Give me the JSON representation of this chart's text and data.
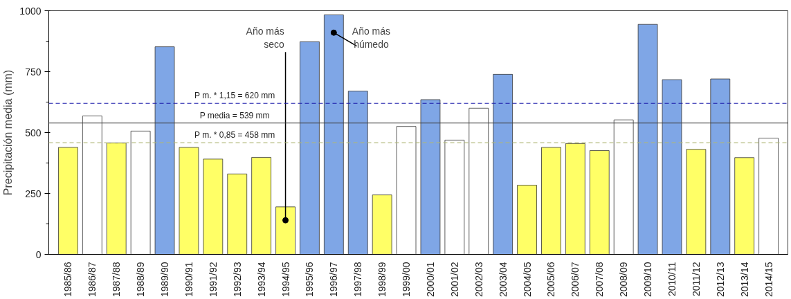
{
  "chart_data": {
    "type": "bar",
    "ylabel": "Precipitación media (mm)",
    "categories": [
      "1985/86",
      "1986/87",
      "1987/88",
      "1988/89",
      "1989/90",
      "1990/91",
      "1991/92",
      "1992/93",
      "1993/94",
      "1994/95",
      "1995/96",
      "1996/97",
      "1997/98",
      "1998/99",
      "1999/00",
      "2000/01",
      "2001/02",
      "2002/03",
      "2003/04",
      "2004/05",
      "2005/06",
      "2006/07",
      "2007/08",
      "2008/09",
      "2009/10",
      "2010/11",
      "2011/12",
      "2012/13",
      "2013/14",
      "2014/15"
    ],
    "values": [
      439,
      568,
      457,
      506,
      852,
      439,
      391,
      330,
      398,
      195,
      873,
      983,
      670,
      244,
      525,
      635,
      469,
      600,
      739,
      284,
      439,
      455,
      426,
      552,
      944,
      717,
      431,
      720,
      397,
      477
    ],
    "colors": [
      "#ffff66",
      "#ffffff",
      "#ffff66",
      "#ffffff",
      "#7fa6e6",
      "#ffff66",
      "#ffff66",
      "#ffff66",
      "#ffff66",
      "#ffff66",
      "#7fa6e6",
      "#7fa6e6",
      "#7fa6e6",
      "#ffff66",
      "#ffffff",
      "#7fa6e6",
      "#ffffff",
      "#ffffff",
      "#7fa6e6",
      "#ffff66",
      "#ffff66",
      "#ffff66",
      "#ffff66",
      "#ffffff",
      "#7fa6e6",
      "#7fa6e6",
      "#ffff66",
      "#7fa6e6",
      "#ffff66",
      "#ffffff"
    ],
    "ylim": [
      0,
      1000
    ],
    "yticks": [
      0,
      250,
      500,
      750,
      1000
    ],
    "grid": false,
    "ref_lines": [
      {
        "axis": "y",
        "value": 620,
        "label": "P m. * 1,15 = 620 mm",
        "color": "#1a1aaa",
        "line_style": "dashed"
      },
      {
        "axis": "y",
        "value": 539,
        "label": "P media = 539 mm",
        "color": "#404040",
        "line_style": "solid"
      },
      {
        "axis": "y",
        "value": 458,
        "label": "P m. * 0,85 = 458 mm",
        "color": "#b0b878",
        "line_style": "dashed"
      }
    ],
    "annotations": [
      {
        "text": "Año más seco",
        "x": "1994/95",
        "y": 140
      },
      {
        "text": "Año más húmedo",
        "x": "1996/97",
        "y": 910
      }
    ]
  }
}
